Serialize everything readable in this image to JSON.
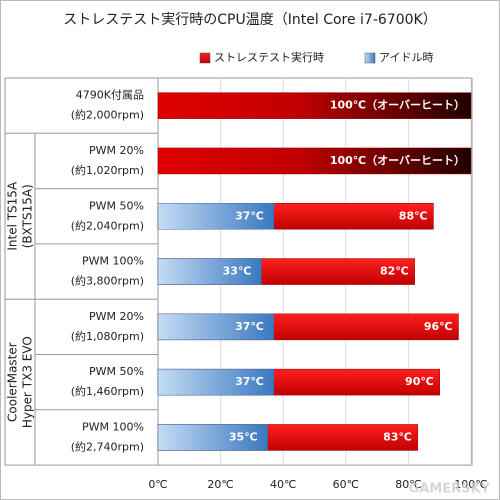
{
  "chart_data": {
    "type": "bar",
    "orientation": "horizontal",
    "title": "ストレステスト実行時のCPU温度（Intel Core i7-6700K）",
    "categories": [
      [
        "4790K付属品",
        "(約2,000rpm)"
      ],
      [
        "PWM 20%",
        "(約1,020rpm)"
      ],
      [
        "PWM 50%",
        "(約2,040rpm)"
      ],
      [
        "PWM 100%",
        "(約3,800rpm)"
      ],
      [
        "PWM 20%",
        "(約1,080rpm)"
      ],
      [
        "PWM 50%",
        "(約1,460rpm)"
      ],
      [
        "PWM 100%",
        "(約2,740rpm)"
      ]
    ],
    "groups": [
      {
        "lines": [
          "Intel TS15A",
          "(BXTS15A)"
        ],
        "span": [
          1,
          3
        ]
      },
      {
        "lines": [
          "CoolerMaster",
          "Hyper TX3 EVO"
        ],
        "span": [
          4,
          6
        ]
      }
    ],
    "series": [
      {
        "name": "ストレステスト実行時",
        "color": "#e00000",
        "values": [
          100,
          100,
          88,
          82,
          96,
          90,
          83
        ],
        "value_labels": [
          "100℃（オーバーヒート）",
          "100℃（オーバーヒート）",
          "88℃",
          "82℃",
          "96℃",
          "90℃",
          "83℃"
        ]
      },
      {
        "name": "アイドル時",
        "color": "#4a85c8",
        "values": [
          null,
          null,
          37,
          33,
          37,
          37,
          35
        ],
        "value_labels": [
          null,
          null,
          "37℃",
          "33℃",
          "37℃",
          "37℃",
          "35℃"
        ]
      }
    ],
    "xlim": [
      0,
      100
    ],
    "xticks": [
      {
        "value": 0,
        "label": "0℃"
      },
      {
        "value": 20,
        "label": "20℃"
      },
      {
        "value": 40,
        "label": "40℃"
      },
      {
        "value": 60,
        "label": "60℃"
      },
      {
        "value": 80,
        "label": "80℃"
      },
      {
        "value": 100,
        "label": "100℃"
      }
    ],
    "watermark": "GAMERSKY"
  }
}
